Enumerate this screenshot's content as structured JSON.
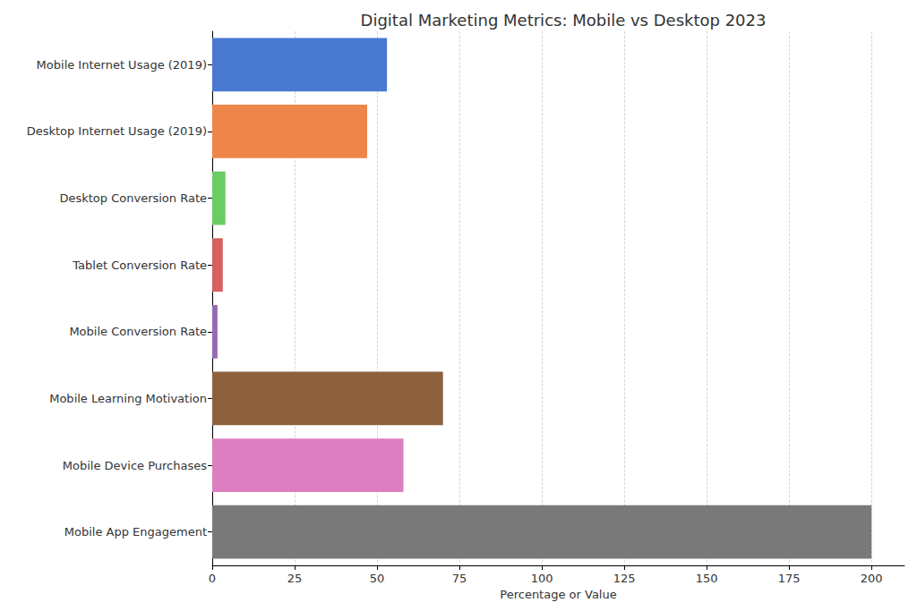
{
  "chart_data": {
    "type": "bar",
    "orientation": "horizontal",
    "title": "Digital Marketing Metrics: Mobile vs Desktop 2023",
    "x_label": "Percentage or Value",
    "categories": [
      "Mobile Internet Usage (2019)",
      "Desktop Internet Usage (2019)",
      "Desktop Conversion Rate",
      "Tablet Conversion Rate",
      "Mobile Conversion Rate",
      "Mobile Learning Motivation",
      "Mobile Device Purchases",
      "Mobile App Engagement"
    ],
    "values": [
      53,
      47,
      4,
      3.2,
      1.6,
      70,
      58,
      200
    ],
    "colors": [
      "#4878d0",
      "#ee854a",
      "#6acc64",
      "#d65f5f",
      "#956cb4",
      "#8c613c",
      "#dc7ec0",
      "#797979"
    ],
    "xlim": [
      0,
      210
    ],
    "xticks": [
      0,
      25,
      50,
      75,
      100,
      125,
      150,
      175,
      200
    ],
    "grid": true
  }
}
